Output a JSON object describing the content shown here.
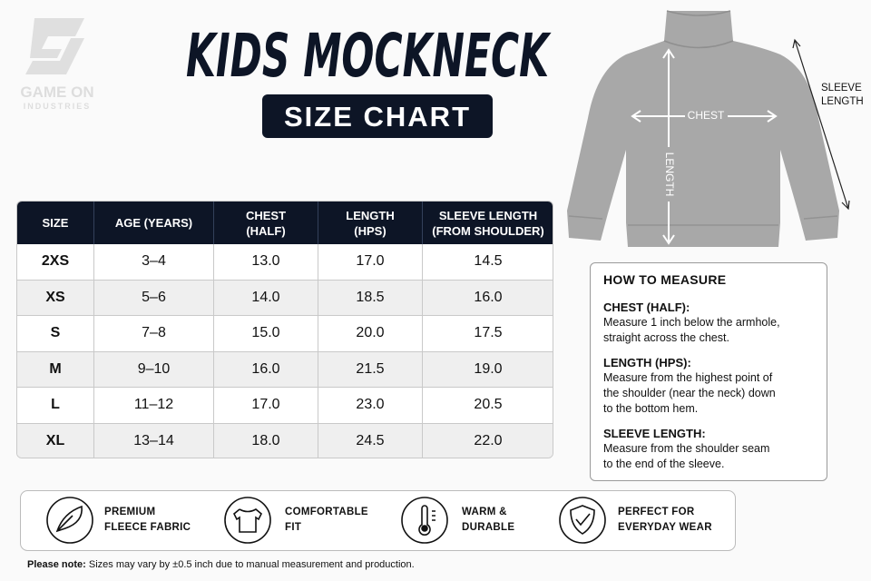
{
  "logo": {
    "name": "GAME ON",
    "tagline": "INDUSTRIES"
  },
  "title": "KIDS MOCKNECK",
  "subtitle": "SIZE CHART",
  "table": {
    "headers": [
      [
        "SIZE"
      ],
      [
        "AGE (YEARS)"
      ],
      [
        "CHEST",
        "(HALF)"
      ],
      [
        "LENGTH",
        "(HPS)"
      ],
      [
        "SLEEVE LENGTH",
        "(FROM SHOULDER)"
      ]
    ],
    "rows": [
      [
        "2XS",
        "3–4",
        "13.0",
        "17.0",
        "14.5"
      ],
      [
        "XS",
        "5–6",
        "14.0",
        "18.5",
        "16.0"
      ],
      [
        "S",
        "7–8",
        "15.0",
        "20.0",
        "17.5"
      ],
      [
        "M",
        "9–10",
        "16.0",
        "21.5",
        "19.0"
      ],
      [
        "L",
        "11–12",
        "17.0",
        "23.0",
        "20.5"
      ],
      [
        "XL",
        "13–14",
        "18.0",
        "24.5",
        "22.0"
      ]
    ]
  },
  "diagram": {
    "chest": "CHEST",
    "length": "LENGTH",
    "sleeve": [
      "SLEEVE",
      "LENGTH"
    ]
  },
  "how_to_measure": {
    "title": "HOW TO MEASURE",
    "sections": [
      {
        "heading": "CHEST (HALF):",
        "lines": [
          "Measure 1 inch below the armhole,",
          "straight across the chest."
        ]
      },
      {
        "heading": "LENGTH (HPS):",
        "lines": [
          "Measure from the highest point of",
          "the shoulder (near the neck) down",
          "to the bottom hem."
        ]
      },
      {
        "heading": "SLEEVE LENGTH:",
        "lines": [
          "Measure from the shoulder seam",
          "to the end of the sleeve."
        ]
      }
    ]
  },
  "features": [
    [
      "PREMIUM",
      "FLEECE FABRIC"
    ],
    [
      "COMFORTABLE",
      "FIT"
    ],
    [
      "WARM &",
      "DURABLE"
    ],
    [
      "PERFECT FOR",
      "EVERYDAY WEAR"
    ]
  ],
  "note": {
    "label": "Please note:",
    "text": "Sizes may vary by ±0.5 inch due to manual measurement and production."
  }
}
